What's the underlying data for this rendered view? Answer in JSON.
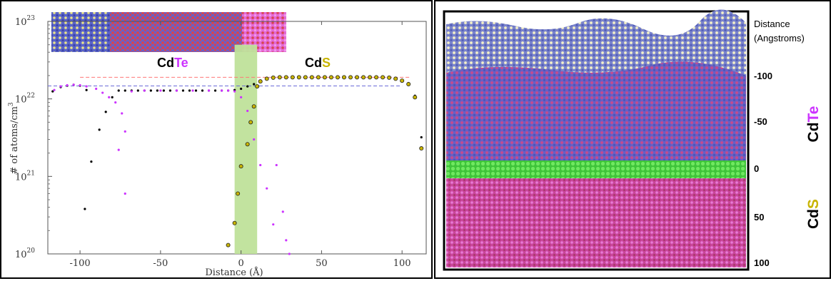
{
  "left_figure": {
    "cdte_label": {
      "cd": "Cd",
      "te": "Te"
    },
    "cds_label": {
      "cd": "Cd",
      "s": "S"
    },
    "colors": {
      "cd": "#000000",
      "te": "#cc33ff",
      "s": "#c8b400",
      "interface_band": "#bfe29a",
      "cdte_dash": "#6a6ad8",
      "cds_dash": "#ff7777",
      "structure_blue": "#5a63c8",
      "structure_red": "#d9434f",
      "structure_pink": "#e36ad6",
      "structure_yellow": "#e8e28a"
    }
  },
  "chart_data": {
    "type": "scatter",
    "xlabel": "Distance (Å)",
    "ylabel": "# of atoms/cm",
    "ylabel_sup": "3",
    "xlim": [
      -120,
      115
    ],
    "ylim": [
      1e+20,
      1e+23
    ],
    "yscale": "log",
    "x_ticks": [
      -100,
      -50,
      0,
      50,
      100
    ],
    "y_ticks": [
      {
        "value": 1e+20,
        "base": "10",
        "exp": "20"
      },
      {
        "value": 1e+21,
        "base": "10",
        "exp": "21"
      },
      {
        "value": 1e+22,
        "base": "10",
        "exp": "22"
      },
      {
        "value": 1e+23,
        "base": "10",
        "exp": "23"
      }
    ],
    "interface_band": [
      -4,
      10
    ],
    "reference_lines": [
      {
        "name": "CdTe",
        "y": 1.47e+22,
        "x_range": [
          -120,
          100
        ],
        "color": "#6a6ad8"
      },
      {
        "name": "CdS",
        "y": 1.9e+22,
        "x_range": [
          -100,
          105
        ],
        "color": "#ff7777"
      }
    ],
    "series": [
      {
        "color": "#000000",
        "points": [
          [
            -117,
            1.25e+22
          ],
          [
            -112,
            1.42e+22
          ],
          [
            -108,
            1.48e+22
          ],
          [
            -104,
            1.52e+22
          ],
          [
            -100,
            1.48e+22
          ],
          [
            -96,
            1.3e+22
          ],
          [
            -97,
            3.8e+20
          ],
          [
            -93,
            1.55e+21
          ],
          [
            -88,
            4e+21
          ],
          [
            -84,
            6.8e+21
          ],
          [
            -80,
            1.05e+22
          ],
          [
            -76,
            1.28e+22
          ],
          [
            -72,
            1.28e+22
          ],
          [
            -68,
            1.28e+22
          ],
          [
            -64,
            1.28e+22
          ],
          [
            -60,
            1.28e+22
          ],
          [
            -56,
            1.28e+22
          ],
          [
            -52,
            1.28e+22
          ],
          [
            -48,
            1.28e+22
          ],
          [
            -44,
            1.28e+22
          ],
          [
            -40,
            1.28e+22
          ],
          [
            -36,
            1.28e+22
          ],
          [
            -32,
            1.28e+22
          ],
          [
            -28,
            1.28e+22
          ],
          [
            -24,
            1.28e+22
          ],
          [
            -20,
            1.28e+22
          ],
          [
            -16,
            1.28e+22
          ],
          [
            -12,
            1.28e+22
          ],
          [
            -8,
            1.28e+22
          ],
          [
            -4,
            1.3e+22
          ],
          [
            0,
            1.35e+22
          ],
          [
            4,
            1.45e+22
          ],
          [
            8,
            1.55e+22
          ],
          [
            12,
            1.65e+22
          ],
          [
            16,
            1.78e+22
          ],
          [
            20,
            1.85e+22
          ],
          [
            24,
            1.88e+22
          ],
          [
            28,
            1.9e+22
          ],
          [
            32,
            1.9e+22
          ],
          [
            36,
            1.9e+22
          ],
          [
            40,
            1.9e+22
          ],
          [
            44,
            1.9e+22
          ],
          [
            48,
            1.9e+22
          ],
          [
            52,
            1.9e+22
          ],
          [
            56,
            1.9e+22
          ],
          [
            60,
            1.9e+22
          ],
          [
            64,
            1.9e+22
          ],
          [
            68,
            1.9e+22
          ],
          [
            72,
            1.9e+22
          ],
          [
            76,
            1.9e+22
          ],
          [
            80,
            1.9e+22
          ],
          [
            84,
            1.9e+22
          ],
          [
            88,
            1.9e+22
          ],
          [
            92,
            1.9e+22
          ],
          [
            96,
            1.85e+22
          ],
          [
            100,
            1.75e+22
          ],
          [
            104,
            1.6e+22
          ],
          [
            108,
            1.1e+22
          ],
          [
            112,
            3.2e+21
          ]
        ]
      },
      {
        "color": "#cc33ff",
        "points": [
          [
            -116,
            1.3e+22
          ],
          [
            -112,
            1.45e+22
          ],
          [
            -108,
            1.5e+22
          ],
          [
            -104,
            1.52e+22
          ],
          [
            -100,
            1.5e+22
          ],
          [
            -96,
            1.45e+22
          ],
          [
            -90,
            1.35e+22
          ],
          [
            -86,
            1.2e+22
          ],
          [
            -82,
            1.05e+22
          ],
          [
            -78,
            9e+21
          ],
          [
            -74,
            6.5e+21
          ],
          [
            -72,
            3.8e+21
          ],
          [
            -76,
            2.2e+21
          ],
          [
            -72,
            6e+20
          ],
          [
            -68,
            1.25e+22
          ],
          [
            -60,
            1.28e+22
          ],
          [
            -50,
            1.28e+22
          ],
          [
            -40,
            1.28e+22
          ],
          [
            -30,
            1.28e+22
          ],
          [
            -20,
            1.28e+22
          ],
          [
            -12,
            1.28e+22
          ],
          [
            -8,
            1.28e+22
          ],
          [
            -4,
            1.25e+22
          ],
          [
            0,
            1.05e+22
          ],
          [
            4,
            7e+21
          ],
          [
            8,
            3e+21
          ],
          [
            12,
            1.4e+21
          ],
          [
            16,
            7e+20
          ],
          [
            20,
            2.4e+20
          ],
          [
            22,
            1.4e+21
          ],
          [
            26,
            3.5e+20
          ],
          [
            28,
            1.5e+20
          ],
          [
            30,
            1e+20
          ]
        ]
      },
      {
        "color": "#c8b400",
        "hollow": true,
        "points": [
          [
            -8,
            1.3e+20
          ],
          [
            -4,
            2.5e+20
          ],
          [
            -2,
            6e+20
          ],
          [
            0,
            1.35e+21
          ],
          [
            4,
            2.6e+21
          ],
          [
            6,
            5e+21
          ],
          [
            8,
            8e+21
          ],
          [
            10,
            1.45e+22
          ],
          [
            12,
            1.68e+22
          ],
          [
            16,
            1.82e+22
          ],
          [
            20,
            1.88e+22
          ],
          [
            24,
            1.9e+22
          ],
          [
            28,
            1.9e+22
          ],
          [
            32,
            1.9e+22
          ],
          [
            36,
            1.9e+22
          ],
          [
            40,
            1.9e+22
          ],
          [
            44,
            1.9e+22
          ],
          [
            48,
            1.9e+22
          ],
          [
            52,
            1.9e+22
          ],
          [
            56,
            1.9e+22
          ],
          [
            60,
            1.9e+22
          ],
          [
            64,
            1.9e+22
          ],
          [
            68,
            1.9e+22
          ],
          [
            72,
            1.9e+22
          ],
          [
            76,
            1.9e+22
          ],
          [
            80,
            1.9e+22
          ],
          [
            84,
            1.9e+22
          ],
          [
            88,
            1.9e+22
          ],
          [
            92,
            1.88e+22
          ],
          [
            96,
            1.82e+22
          ],
          [
            100,
            1.72e+22
          ],
          [
            104,
            1.55e+22
          ],
          [
            108,
            1.05e+22
          ],
          [
            112,
            2.3e+21
          ]
        ]
      }
    ]
  },
  "right_figure": {
    "distance_header": "Distance",
    "distance_unit": "(Angstroms)",
    "ticks": [
      "-100",
      "-50",
      "0",
      "50",
      "100"
    ],
    "cdte_label": {
      "cd": "Cd",
      "te": "Te"
    },
    "cds_label": {
      "cd": "Cd",
      "s": "S"
    },
    "colors": {
      "vacuum_top": "#b8bcd8",
      "cdte_region": "#8a4fb0",
      "interface": "#3fd43a",
      "cds_region": "#d64fa8",
      "te_color": "#cc33ff",
      "s_color": "#c8b400"
    }
  }
}
